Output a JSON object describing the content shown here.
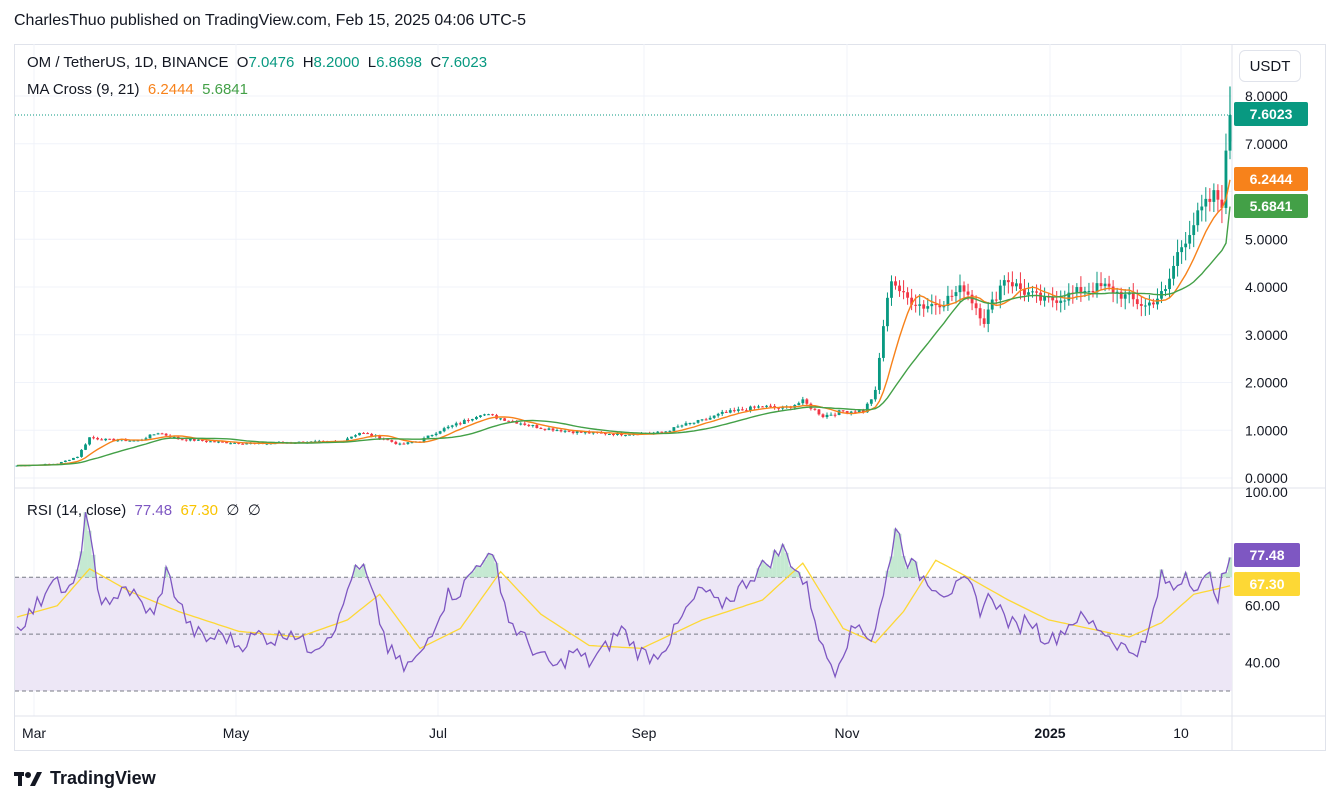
{
  "header": {
    "publisher": "CharlesThuo published on TradingView.com, Feb 15, 2025 04:06 UTC-5"
  },
  "legend": {
    "symbol": "OM / TetherUS, 1D, BINANCE",
    "o_label": "O",
    "o": "7.0476",
    "h_label": "H",
    "h": "8.2000",
    "l_label": "L",
    "l": "6.8698",
    "c_label": "C",
    "c": "7.6023",
    "ma_label": "MA Cross (9, 21)",
    "ma_fast": "6.2444",
    "ma_slow": "5.6841",
    "rsi_label": "RSI (14, close)",
    "rsi_value": "77.48",
    "rsi_ma": "67.30",
    "rsi_extra1": "∅",
    "rsi_extra2": "∅"
  },
  "unit_button": "USDT",
  "footer": {
    "logo": "tradingview-logo-icon",
    "brand": "TradingView"
  },
  "colors": {
    "up": "#089981",
    "down": "#f23645",
    "ma_fast": "#f7821b",
    "ma_slow": "#43a047",
    "rsi": "#7e57c2",
    "rsi_ma": "#fdd835",
    "rsi_band": "#ede7f6"
  },
  "chart_data": [
    {
      "type": "candlestick",
      "title": "",
      "ylim": [
        0,
        8.5
      ],
      "price_ticks": [
        "0.0000",
        "1.0000",
        "2.0000",
        "3.0000",
        "4.0000",
        "5.0000",
        "7.0000",
        "8.0000"
      ],
      "x_ticks": [
        "Mar",
        "May",
        "Jul",
        "Sep",
        "Nov",
        "2025",
        "10"
      ],
      "last_price": 7.6023,
      "last_price_label": "7.6023",
      "ma_fast_last": 6.2444,
      "ma_fast_label": "6.2444",
      "ma_slow_last": 5.6841,
      "ma_slow_label": "5.6841",
      "close_path": [
        [
          0,
          0.26
        ],
        [
          10,
          0.3
        ],
        [
          15,
          0.45
        ],
        [
          18,
          0.85
        ],
        [
          22,
          0.8
        ],
        [
          30,
          0.78
        ],
        [
          35,
          0.95
        ],
        [
          40,
          0.82
        ],
        [
          50,
          0.75
        ],
        [
          60,
          0.72
        ],
        [
          70,
          0.75
        ],
        [
          80,
          0.76
        ],
        [
          85,
          0.95
        ],
        [
          90,
          0.85
        ],
        [
          95,
          0.7
        ],
        [
          100,
          0.78
        ],
        [
          105,
          1.0
        ],
        [
          110,
          1.15
        ],
        [
          115,
          1.35
        ],
        [
          120,
          1.25
        ],
        [
          130,
          1.05
        ],
        [
          140,
          0.95
        ],
        [
          150,
          0.92
        ],
        [
          160,
          0.95
        ],
        [
          165,
          1.1
        ],
        [
          170,
          1.2
        ],
        [
          175,
          1.35
        ],
        [
          185,
          1.5
        ],
        [
          190,
          1.45
        ],
        [
          195,
          1.6
        ],
        [
          200,
          1.3
        ],
        [
          205,
          1.4
        ],
        [
          210,
          1.4
        ],
        [
          213,
          1.8
        ],
        [
          215,
          3.2
        ],
        [
          217,
          4.2
        ],
        [
          220,
          3.8
        ],
        [
          225,
          3.6
        ],
        [
          230,
          3.7
        ],
        [
          235,
          4.0
        ],
        [
          240,
          3.3
        ],
        [
          245,
          4.2
        ],
        [
          250,
          3.9
        ],
        [
          255,
          3.7
        ],
        [
          260,
          3.8
        ],
        [
          265,
          3.95
        ],
        [
          270,
          4.0
        ],
        [
          275,
          3.8
        ],
        [
          280,
          3.6
        ],
        [
          285,
          3.9
        ],
        [
          288,
          4.7
        ],
        [
          291,
          5.2
        ],
        [
          294,
          5.6
        ],
        [
          297,
          5.9
        ],
        [
          299,
          5.8
        ],
        [
          301,
          7.6
        ]
      ]
    },
    {
      "type": "line",
      "title": "",
      "ylim": [
        30,
        100
      ],
      "rsi_ticks": [
        "100.00",
        "60.00",
        "40.00"
      ],
      "upper_band": 70,
      "lower_band": 30,
      "mid_line": 50,
      "last_rsi": 77.48,
      "last_rsi_label": "77.48",
      "last_rsi_ma": 67.3,
      "last_rsi_ma_label": "67.30",
      "rsi_path": [
        [
          0,
          52
        ],
        [
          6,
          62
        ],
        [
          9,
          72
        ],
        [
          12,
          63
        ],
        [
          15,
          70
        ],
        [
          17,
          93
        ],
        [
          20,
          66
        ],
        [
          23,
          58
        ],
        [
          26,
          68
        ],
        [
          30,
          62
        ],
        [
          34,
          56
        ],
        [
          37,
          72
        ],
        [
          40,
          62
        ],
        [
          43,
          52
        ],
        [
          47,
          48
        ],
        [
          51,
          50
        ],
        [
          55,
          46
        ],
        [
          60,
          50
        ],
        [
          64,
          48
        ],
        [
          68,
          52
        ],
        [
          72,
          45
        ],
        [
          76,
          48
        ],
        [
          80,
          55
        ],
        [
          83,
          71
        ],
        [
          86,
          73
        ],
        [
          89,
          60
        ],
        [
          92,
          45
        ],
        [
          96,
          38
        ],
        [
          100,
          42
        ],
        [
          104,
          55
        ],
        [
          107,
          64
        ],
        [
          110,
          65
        ],
        [
          113,
          72
        ],
        [
          116,
          78
        ],
        [
          119,
          74
        ],
        [
          122,
          55
        ],
        [
          126,
          48
        ],
        [
          130,
          42
        ],
        [
          134,
          38
        ],
        [
          138,
          44
        ],
        [
          142,
          40
        ],
        [
          146,
          45
        ],
        [
          150,
          52
        ],
        [
          154,
          44
        ],
        [
          158,
          42
        ],
        [
          162,
          48
        ],
        [
          166,
          58
        ],
        [
          170,
          66
        ],
        [
          174,
          60
        ],
        [
          178,
          64
        ],
        [
          182,
          70
        ],
        [
          186,
          75
        ],
        [
          190,
          80
        ],
        [
          193,
          74
        ],
        [
          196,
          66
        ],
        [
          198,
          56
        ],
        [
          200,
          44
        ],
        [
          203,
          38
        ],
        [
          206,
          48
        ],
        [
          209,
          54
        ],
        [
          212,
          48
        ],
        [
          215,
          63
        ],
        [
          218,
          88
        ],
        [
          221,
          76
        ],
        [
          224,
          71
        ],
        [
          227,
          68
        ],
        [
          230,
          65
        ],
        [
          233,
          66
        ],
        [
          236,
          68
        ],
        [
          239,
          59
        ],
        [
          242,
          64
        ],
        [
          245,
          56
        ],
        [
          248,
          52
        ],
        [
          251,
          56
        ],
        [
          254,
          50
        ],
        [
          257,
          48
        ],
        [
          260,
          52
        ],
        [
          263,
          56
        ],
        [
          266,
          54
        ],
        [
          269,
          52
        ],
        [
          272,
          48
        ],
        [
          276,
          44
        ],
        [
          280,
          46
        ],
        [
          284,
          70
        ],
        [
          287,
          66
        ],
        [
          290,
          72
        ],
        [
          293,
          66
        ],
        [
          296,
          70
        ],
        [
          298,
          64
        ],
        [
          301,
          77
        ]
      ],
      "rsi_ma_path": [
        [
          0,
          56
        ],
        [
          10,
          60
        ],
        [
          18,
          73
        ],
        [
          28,
          65
        ],
        [
          40,
          58
        ],
        [
          55,
          51
        ],
        [
          70,
          49
        ],
        [
          82,
          55
        ],
        [
          90,
          64
        ],
        [
          100,
          45
        ],
        [
          110,
          52
        ],
        [
          120,
          72
        ],
        [
          130,
          57
        ],
        [
          142,
          46
        ],
        [
          155,
          45
        ],
        [
          170,
          55
        ],
        [
          185,
          62
        ],
        [
          195,
          75
        ],
        [
          205,
          52
        ],
        [
          213,
          47
        ],
        [
          220,
          58
        ],
        [
          228,
          76
        ],
        [
          236,
          70
        ],
        [
          246,
          62
        ],
        [
          256,
          55
        ],
        [
          266,
          52
        ],
        [
          276,
          49
        ],
        [
          284,
          54
        ],
        [
          292,
          64
        ],
        [
          301,
          67
        ]
      ]
    }
  ]
}
